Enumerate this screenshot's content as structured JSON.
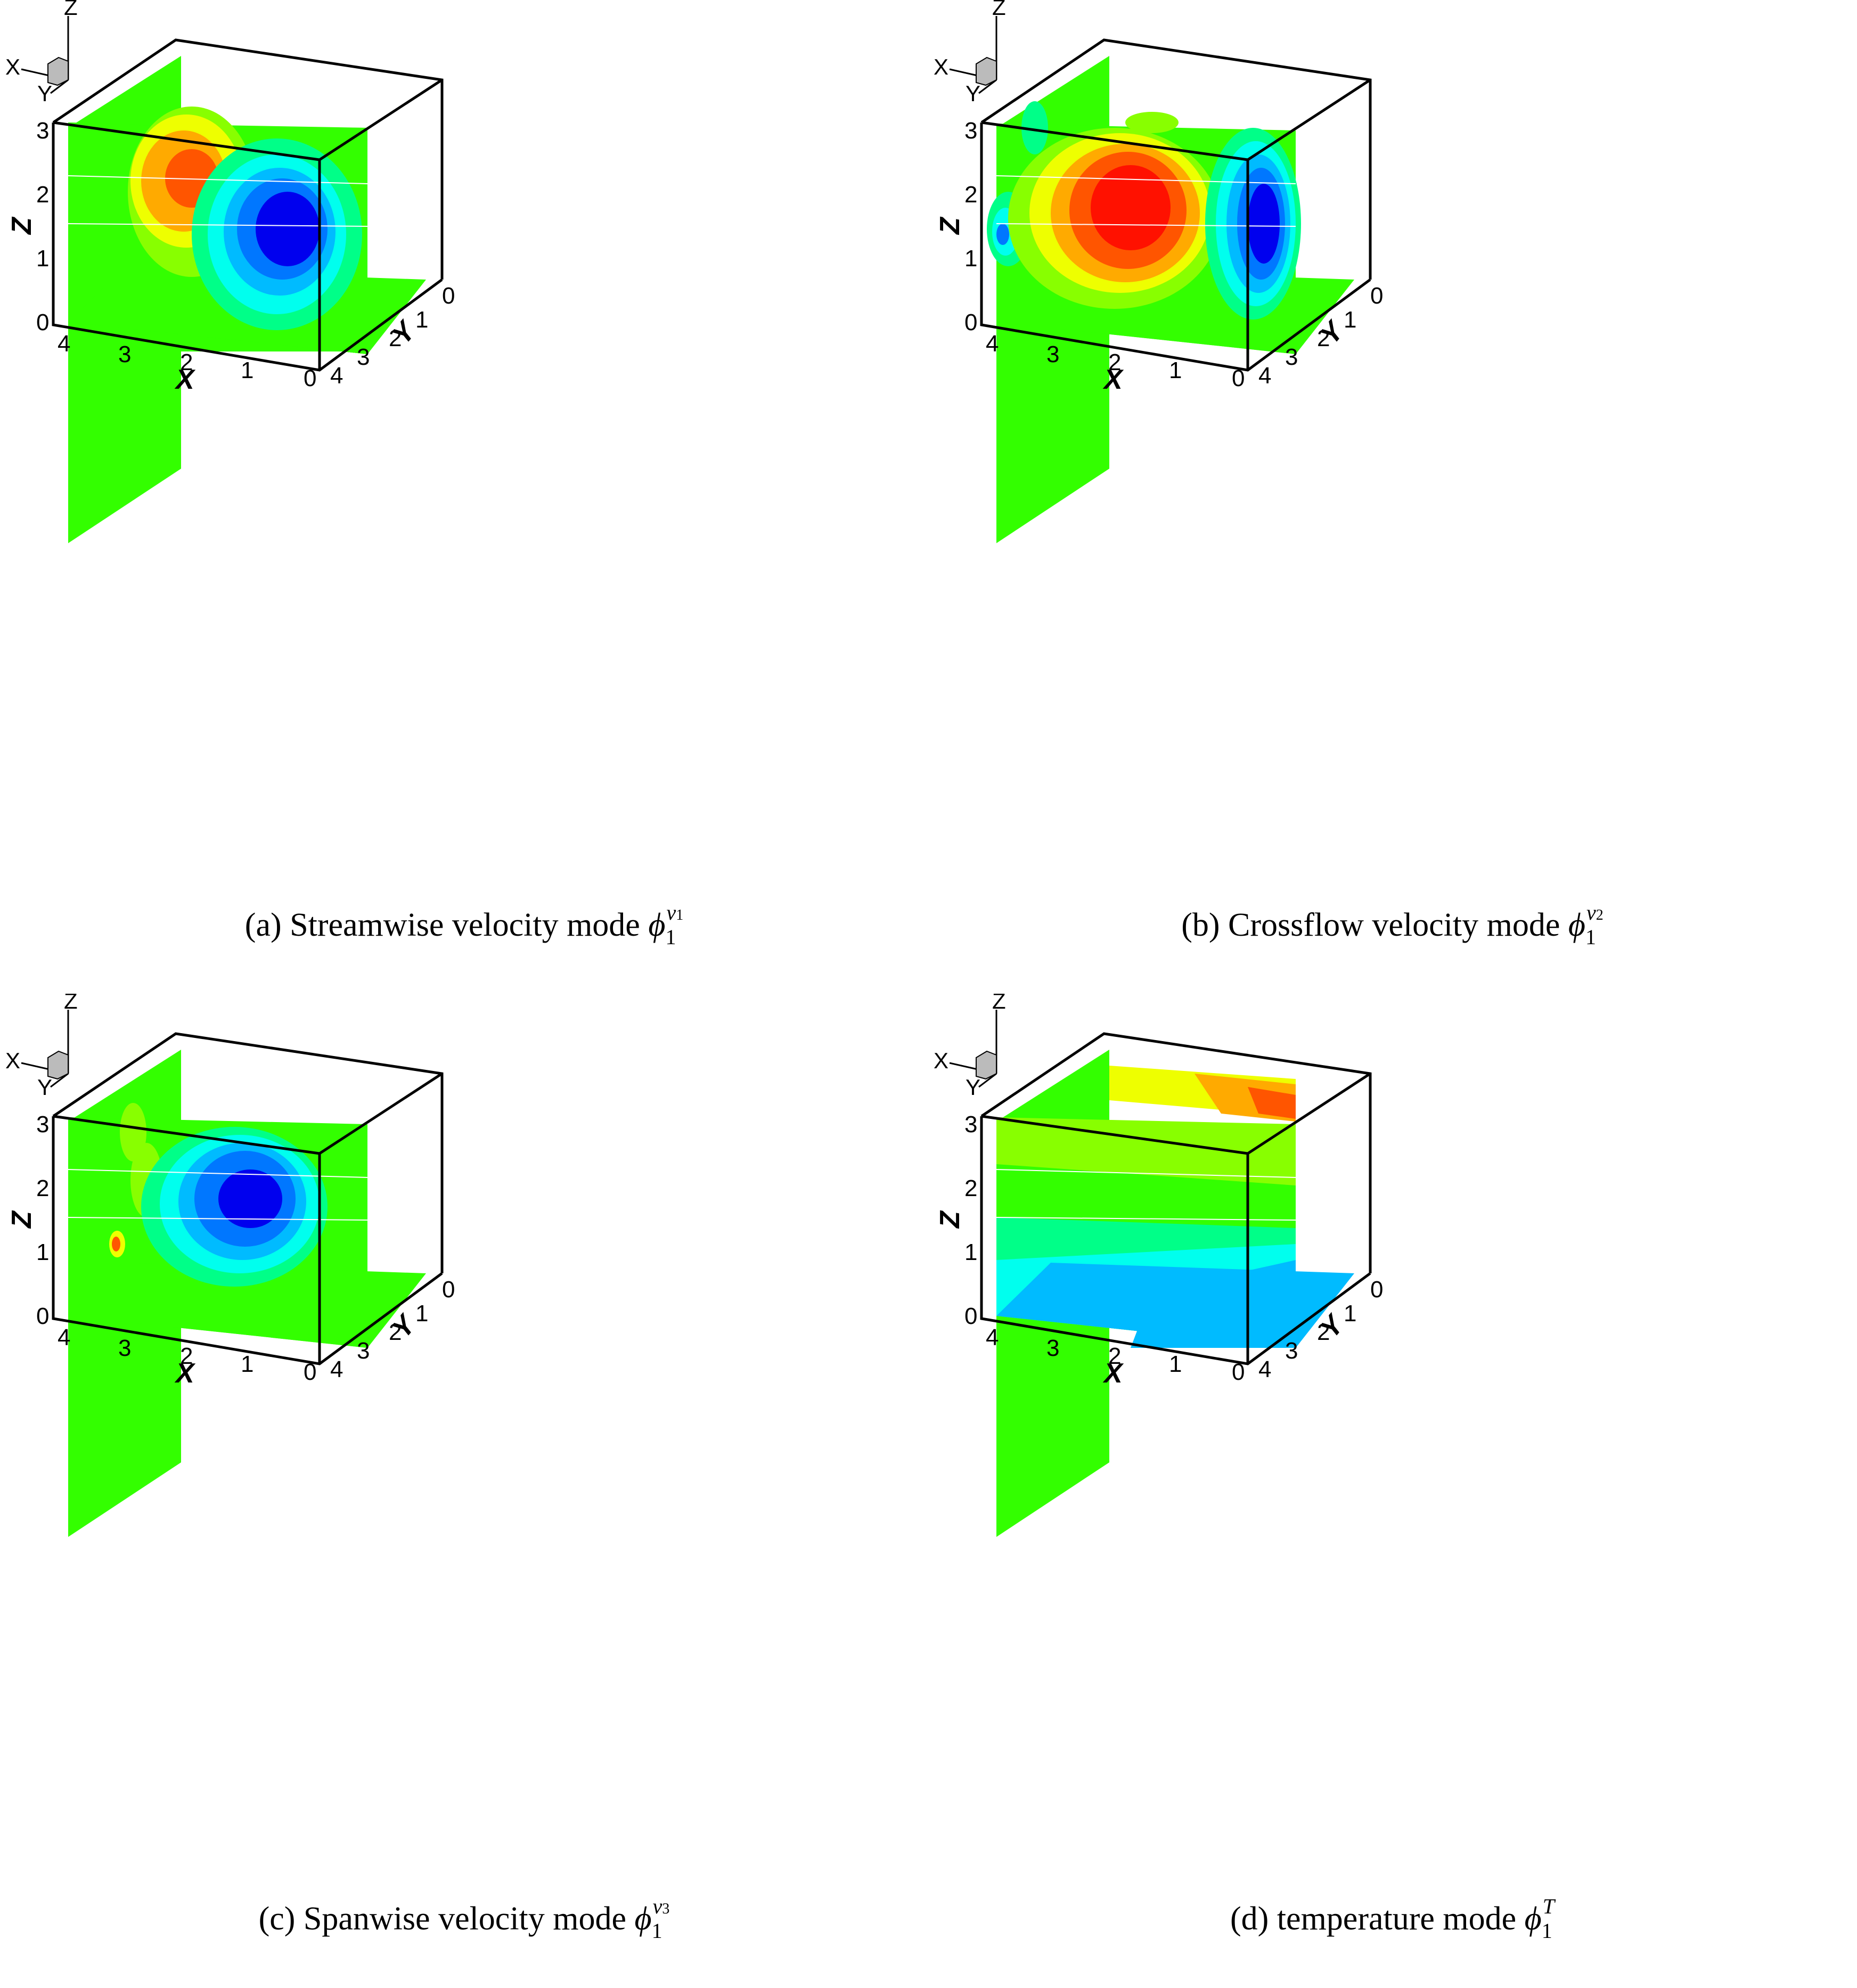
{
  "panels": [
    {
      "id": "a",
      "caption": {
        "prefix": "(a) Streamwise velocity mode ",
        "symbol": "ϕ",
        "sub": "1",
        "sup": "v",
        "sup_sub": "1"
      },
      "axis_titles": {
        "x": "X",
        "y": "Y",
        "z": "Z"
      },
      "triad_labels": {
        "x": "X",
        "y": "Y",
        "z": "Z"
      },
      "z_ticks": [
        "0",
        "1",
        "2",
        "3"
      ],
      "x_ticks": [
        "4",
        "3",
        "2",
        "1",
        "0"
      ],
      "y_ticks": [
        "0",
        "1",
        "2",
        "3",
        "4"
      ],
      "field": "streamwise"
    },
    {
      "id": "b",
      "caption": {
        "prefix": "(b) Crossflow velocity mode ",
        "symbol": "ϕ",
        "sub": "1",
        "sup": "v",
        "sup_sub": "2"
      },
      "axis_titles": {
        "x": "X",
        "y": "Y",
        "z": "Z"
      },
      "triad_labels": {
        "x": "X",
        "y": "Y",
        "z": "Z"
      },
      "z_ticks": [
        "0",
        "1",
        "2",
        "3"
      ],
      "x_ticks": [
        "4",
        "3",
        "2",
        "1",
        "0"
      ],
      "y_ticks": [
        "0",
        "1",
        "2",
        "3",
        "4"
      ],
      "field": "crossflow"
    },
    {
      "id": "c",
      "caption": {
        "prefix": "(c) Spanwise velocity mode ",
        "symbol": "ϕ",
        "sub": "1",
        "sup": "v",
        "sup_sub": "3"
      },
      "axis_titles": {
        "x": "X",
        "y": "Y",
        "z": "Z"
      },
      "triad_labels": {
        "x": "X",
        "y": "Y",
        "z": "Z"
      },
      "z_ticks": [
        "0",
        "1",
        "2",
        "3"
      ],
      "x_ticks": [
        "4",
        "3",
        "2",
        "1",
        "0"
      ],
      "y_ticks": [
        "0",
        "1",
        "2",
        "3",
        "4"
      ],
      "field": "spanwise"
    },
    {
      "id": "d",
      "caption": {
        "prefix": "(d) temperature mode ",
        "symbol": "ϕ",
        "sub": "1",
        "sup": "T",
        "sup_sub": ""
      },
      "axis_titles": {
        "x": "X",
        "y": "Y",
        "z": "Z"
      },
      "triad_labels": {
        "x": "X",
        "y": "Y",
        "z": "Z"
      },
      "z_ticks": [
        "0",
        "1",
        "2",
        "3"
      ],
      "x_ticks": [
        "4",
        "3",
        "2",
        "1",
        "0"
      ],
      "y_ticks": [
        "0",
        "1",
        "2",
        "3",
        "4"
      ],
      "field": "temperature"
    }
  ],
  "colormap": {
    "background_green": "#33ff00",
    "light_green": "#88ff00",
    "yellow": "#eeff00",
    "orange": "#ffaa00",
    "red_orange": "#ff5500",
    "red": "#ff1100",
    "teal_green": "#00ff88",
    "cyan": "#00ffee",
    "sky": "#00bbff",
    "blue_mid": "#0077ff",
    "blue_dark": "#0000ee"
  }
}
